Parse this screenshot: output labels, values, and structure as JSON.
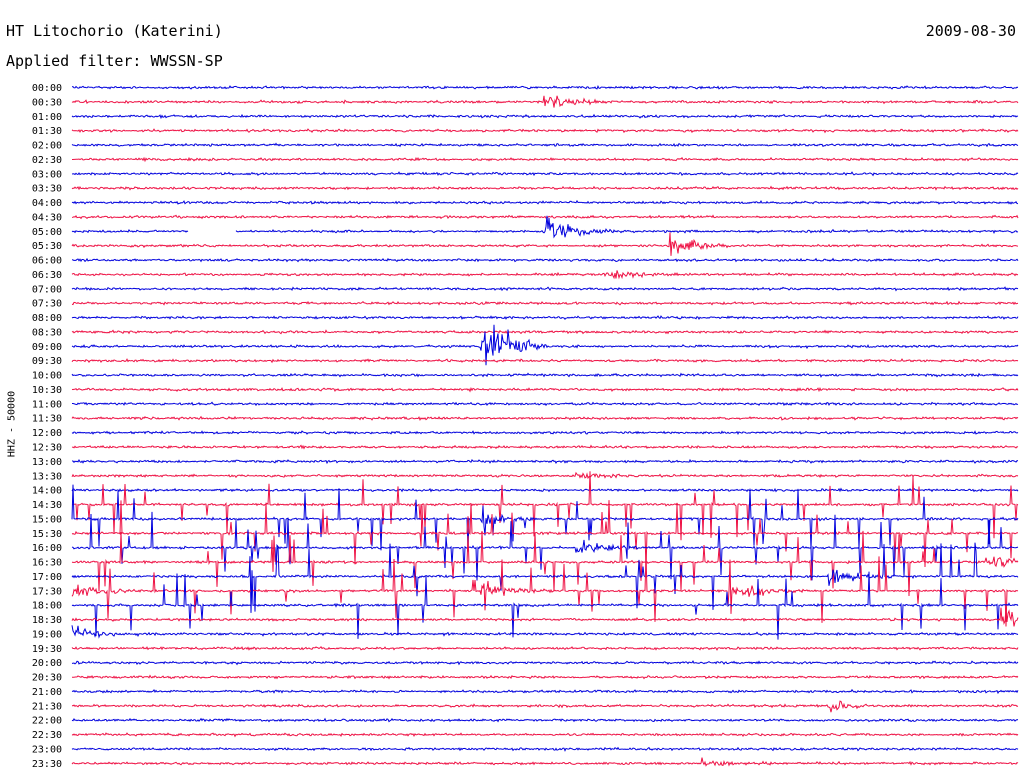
{
  "header": {
    "title": "HT Litochorio (Katerini)",
    "date": "2009-08-30",
    "filter": "Applied filter: WWSSN-SP"
  },
  "colors": {
    "trace_a": "#0000dd",
    "trace_b": "#ee1144",
    "text": "#000000",
    "background": "#ffffff"
  },
  "chart_data": {
    "type": "line",
    "subtype": "helicorder",
    "title": "HT Litochorio (Katerini)",
    "date": "2009-08-30",
    "ylabel": "HHZ - 50000",
    "row_minutes": 30,
    "rows": [
      "00:00",
      "00:30",
      "01:00",
      "01:30",
      "02:00",
      "02:30",
      "03:00",
      "03:30",
      "04:00",
      "04:30",
      "05:00",
      "05:30",
      "06:00",
      "06:30",
      "07:00",
      "07:30",
      "08:00",
      "08:30",
      "09:00",
      "09:30",
      "10:00",
      "10:30",
      "11:00",
      "11:30",
      "12:00",
      "12:30",
      "13:00",
      "13:30",
      "14:00",
      "14:30",
      "15:00",
      "15:30",
      "16:00",
      "16:30",
      "17:00",
      "17:30",
      "18:00",
      "18:30",
      "19:00",
      "19:30",
      "20:00",
      "20:30",
      "21:00",
      "21:30",
      "22:00",
      "22:30",
      "23:00",
      "23:30"
    ],
    "series_colors": [
      "#0000dd",
      "#ee1144"
    ],
    "color_pattern": "alternating rows (blue, red)",
    "events": [
      {
        "row": "00:30",
        "minute": 15,
        "amplitude": 1.0
      },
      {
        "row": "05:00",
        "minute": 15,
        "amplitude": 2.0
      },
      {
        "row": "05:30",
        "minute": 19,
        "amplitude": 1.3
      },
      {
        "row": "06:30",
        "minute": 17,
        "amplitude": 0.5
      },
      {
        "row": "09:00",
        "minute": 13,
        "amplitude": 5.0
      },
      {
        "row": "13:30",
        "minute": 16,
        "amplitude": 0.4
      },
      {
        "row": "15:00",
        "minute": 13,
        "amplitude": 0.8
      },
      {
        "row": "16:00",
        "minute": 16,
        "amplitude": 0.8
      },
      {
        "row": "16:30",
        "minute": 29,
        "amplitude": 0.9
      },
      {
        "row": "17:00",
        "minute": 24,
        "amplitude": 1.2
      },
      {
        "row": "17:30",
        "minute": 0,
        "amplitude": 0.9
      },
      {
        "row": "17:30",
        "minute": 13,
        "amplitude": 1.0
      },
      {
        "row": "17:30",
        "minute": 21,
        "amplitude": 1.0
      },
      {
        "row": "18:30",
        "minute": 29.5,
        "amplitude": 1.5
      },
      {
        "row": "19:00",
        "minute": 0,
        "amplitude": 0.8
      },
      {
        "row": "21:30",
        "minute": 24,
        "amplitude": 0.5
      },
      {
        "row": "23:30",
        "minute": 20,
        "amplitude": 0.5
      }
    ],
    "noise_window": {
      "from": "14:30",
      "to": "18:00",
      "description": "many short spikes"
    },
    "gap": {
      "row": "05:00",
      "minute_from": 3.7,
      "minute_to": 5.2
    }
  }
}
